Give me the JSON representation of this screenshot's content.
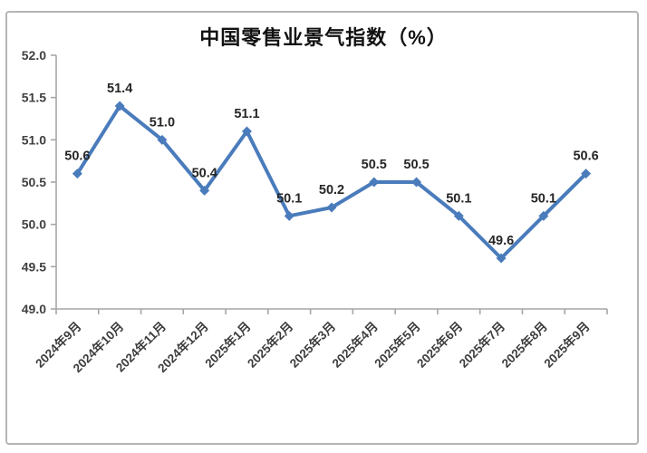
{
  "window": {
    "background": "#ffffff",
    "card_border_color": "#b5b5b5"
  },
  "chart_data": {
    "type": "line",
    "title": "中国零售业景气指数（%）",
    "categories": [
      "2024年9月",
      "2024年10月",
      "2024年11月",
      "2024年12月",
      "2025年1月",
      "2025年2月",
      "2025年3月",
      "2025年4月",
      "2025年5月",
      "2025年6月",
      "2025年7月",
      "2025年8月",
      "2025年9月"
    ],
    "values": [
      50.6,
      51.4,
      51.0,
      50.4,
      51.1,
      50.1,
      50.2,
      50.5,
      50.5,
      50.1,
      49.6,
      50.1,
      50.6
    ],
    "data_labels": [
      "50.6",
      "51.4",
      "51.0",
      "50.4",
      "51.1",
      "50.1",
      "50.2",
      "50.5",
      "50.5",
      "50.1",
      "49.6",
      "50.1",
      "50.6"
    ],
    "xlabel": "",
    "ylabel": "",
    "ylim": [
      49.0,
      52.0
    ],
    "ytick_step": 0.5,
    "yticks": [
      "52.0",
      "51.5",
      "51.0",
      "50.5",
      "50.0",
      "49.5",
      "49.0"
    ],
    "grid": false,
    "legend_position": "none",
    "marker": "diamond",
    "series_color": "#4a7cbc",
    "axis_color": "#a6a6a6",
    "tick_label_color": "#404040",
    "x_label_color": "#3d3d3d",
    "data_label_color": "#262626",
    "title_color": "#111111"
  }
}
